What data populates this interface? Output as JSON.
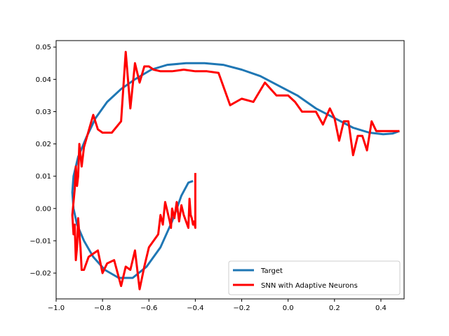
{
  "chart_data": {
    "type": "line",
    "xlim": [
      -1.0,
      0.5
    ],
    "ylim": [
      -0.028,
      0.052
    ],
    "x_ticks": [
      -1.0,
      -0.8,
      -0.6,
      -0.4,
      -0.2,
      0.0,
      0.2,
      0.4
    ],
    "x_tick_labels": [
      "−1.0",
      "−0.8",
      "−0.6",
      "−0.4",
      "−0.2",
      "0.0",
      "0.2",
      "0.4"
    ],
    "y_ticks": [
      -0.02,
      -0.01,
      0.0,
      0.01,
      0.02,
      0.03,
      0.04,
      0.05
    ],
    "y_tick_labels": [
      "−0.02",
      "−0.01",
      "0.00",
      "0.01",
      "0.02",
      "0.03",
      "0.04",
      "0.05"
    ],
    "grid": false,
    "legend_position": "lower-right",
    "series": [
      {
        "name": "Target",
        "color": "#1f77b4",
        "x": [
          -0.41,
          -0.43,
          -0.46,
          -0.5,
          -0.55,
          -0.61,
          -0.67,
          -0.73,
          -0.79,
          -0.84,
          -0.88,
          -0.91,
          -0.925,
          -0.93,
          -0.925,
          -0.905,
          -0.87,
          -0.83,
          -0.78,
          -0.72,
          -0.66,
          -0.59,
          -0.52,
          -0.44,
          -0.36,
          -0.28,
          -0.2,
          -0.12,
          -0.04,
          0.04,
          0.12,
          0.2,
          0.28,
          0.35,
          0.41,
          0.45,
          0.48
        ],
        "y": [
          0.0085,
          0.008,
          0.004,
          -0.004,
          -0.012,
          -0.018,
          -0.0215,
          -0.0215,
          -0.019,
          -0.015,
          -0.01,
          -0.005,
          0.0,
          0.005,
          0.01,
          0.016,
          0.022,
          0.028,
          0.033,
          0.037,
          0.04,
          0.043,
          0.0445,
          0.045,
          0.045,
          0.0445,
          0.043,
          0.041,
          0.038,
          0.035,
          0.031,
          0.028,
          0.025,
          0.0235,
          0.023,
          0.0232,
          0.024
        ]
      },
      {
        "name": "SNN with Adaptive Neurons",
        "color": "#ff0000",
        "x": [
          -0.4,
          -0.4,
          -0.405,
          -0.41,
          -0.415,
          -0.42,
          -0.425,
          -0.43,
          -0.44,
          -0.45,
          -0.46,
          -0.47,
          -0.48,
          -0.49,
          -0.5,
          -0.505,
          -0.51,
          -0.52,
          -0.53,
          -0.54,
          -0.55,
          -0.56,
          -0.58,
          -0.6,
          -0.62,
          -0.64,
          -0.66,
          -0.68,
          -0.7,
          -0.72,
          -0.75,
          -0.78,
          -0.8,
          -0.82,
          -0.84,
          -0.86,
          -0.88,
          -0.89,
          -0.895,
          -0.9,
          -0.905,
          -0.91,
          -0.915,
          -0.92,
          -0.925,
          -0.93,
          -0.925,
          -0.92,
          -0.915,
          -0.91,
          -0.905,
          -0.9,
          -0.89,
          -0.88,
          -0.86,
          -0.84,
          -0.82,
          -0.8,
          -0.76,
          -0.72,
          -0.7,
          -0.68,
          -0.66,
          -0.64,
          -0.62,
          -0.6,
          -0.58,
          -0.55,
          -0.5,
          -0.45,
          -0.4,
          -0.35,
          -0.3,
          -0.25,
          -0.2,
          -0.15,
          -0.1,
          -0.05,
          0.0,
          0.03,
          0.06,
          0.09,
          0.12,
          0.15,
          0.18,
          0.2,
          0.22,
          0.24,
          0.26,
          0.28,
          0.3,
          0.32,
          0.34,
          0.36,
          0.38,
          0.4,
          0.42,
          0.44,
          0.46,
          0.48
        ],
        "y": [
          0.011,
          -0.006,
          -0.004,
          -0.005,
          -0.003,
          -0.002,
          0.003,
          -0.006,
          -0.004,
          -0.002,
          0.001,
          -0.004,
          0.002,
          -0.003,
          0.0,
          -0.006,
          -0.004,
          -0.001,
          0.002,
          -0.005,
          -0.002,
          -0.008,
          -0.01,
          -0.012,
          -0.018,
          -0.025,
          -0.013,
          -0.019,
          -0.018,
          -0.024,
          -0.016,
          -0.017,
          -0.02,
          -0.013,
          -0.014,
          -0.015,
          -0.019,
          -0.019,
          -0.012,
          -0.008,
          -0.003,
          -0.012,
          -0.016,
          -0.005,
          -0.008,
          -0.002,
          0.002,
          0.006,
          0.013,
          0.007,
          0.01,
          0.02,
          0.013,
          0.019,
          0.024,
          0.029,
          0.0245,
          0.0235,
          0.0235,
          0.027,
          0.0485,
          0.031,
          0.045,
          0.039,
          0.044,
          0.044,
          0.043,
          0.0425,
          0.0425,
          0.043,
          0.0425,
          0.0425,
          0.042,
          0.032,
          0.034,
          0.033,
          0.039,
          0.035,
          0.035,
          0.033,
          0.03,
          0.03,
          0.03,
          0.026,
          0.031,
          0.028,
          0.021,
          0.027,
          0.027,
          0.0165,
          0.0225,
          0.0225,
          0.018,
          0.027,
          0.024,
          0.024,
          0.024,
          0.024,
          0.024,
          0.024
        ]
      }
    ]
  }
}
